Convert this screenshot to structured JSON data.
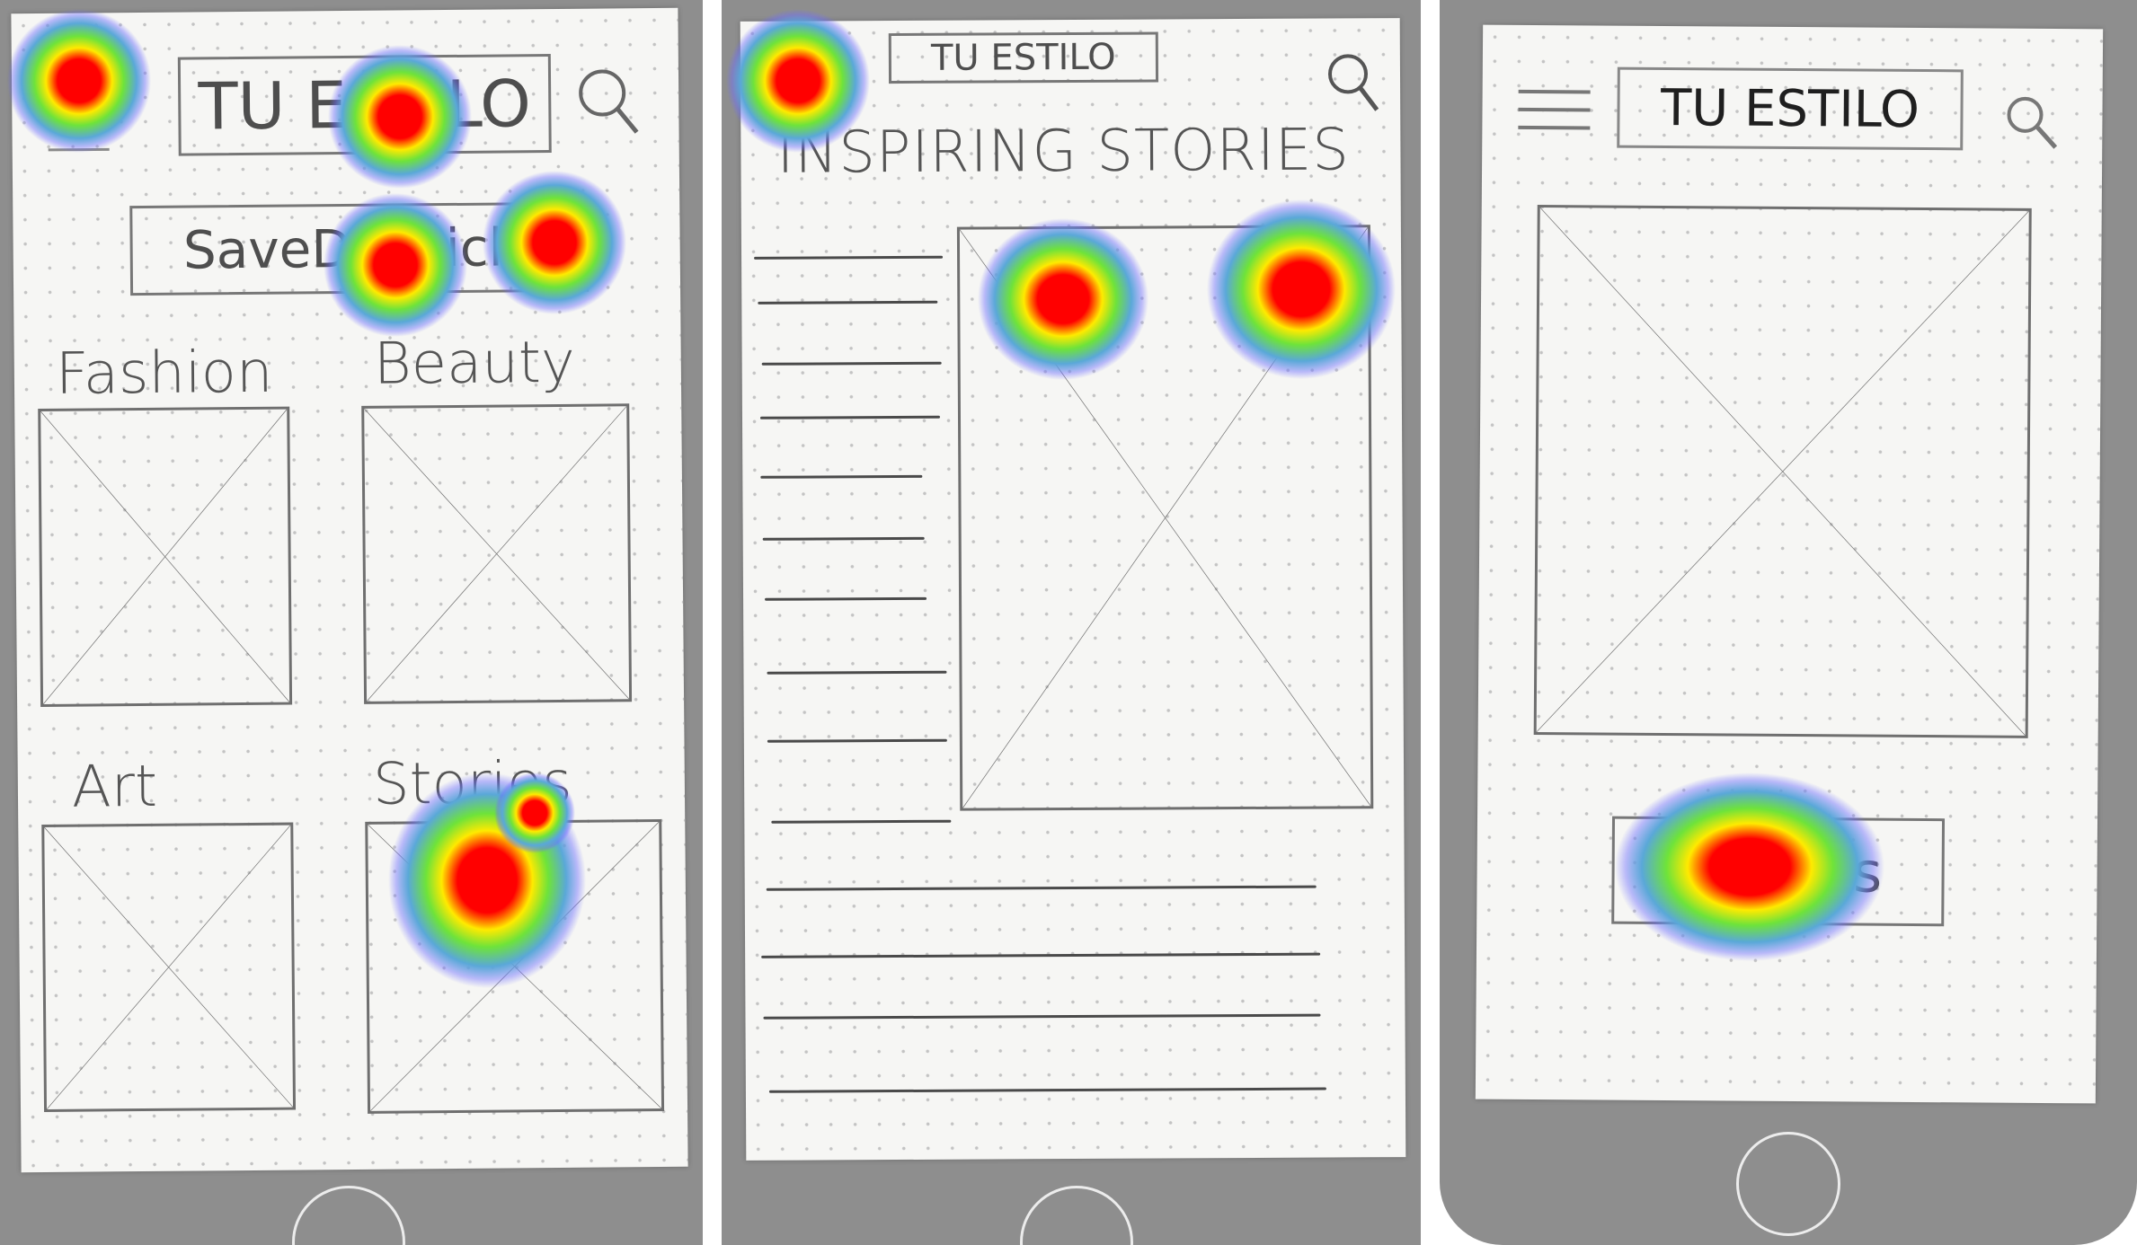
{
  "screen_1": {
    "title": "TU ESTILO",
    "saved_articles": "SaveD Article",
    "categories": [
      "Fashion",
      "Beauty",
      "Art",
      "Stories"
    ]
  },
  "screen_2": {
    "title": "TU ESTILO",
    "heading": "INSPIRING STORIES"
  },
  "screen_3": {
    "title": "TU ESTILO",
    "button": "Articles"
  },
  "icons": {
    "menu": "hamburger-menu-icon",
    "search": "search-icon",
    "placeholder": "image-placeholder-x"
  },
  "colors": {
    "phone": "#8e8e8e",
    "paper": "#f6f6f4",
    "pencil": "#555555",
    "heat_hot": "#ff0000",
    "heat_warm": "#ffea00",
    "heat_mid": "#6ee33a",
    "heat_cool": "#5aa8d8"
  }
}
